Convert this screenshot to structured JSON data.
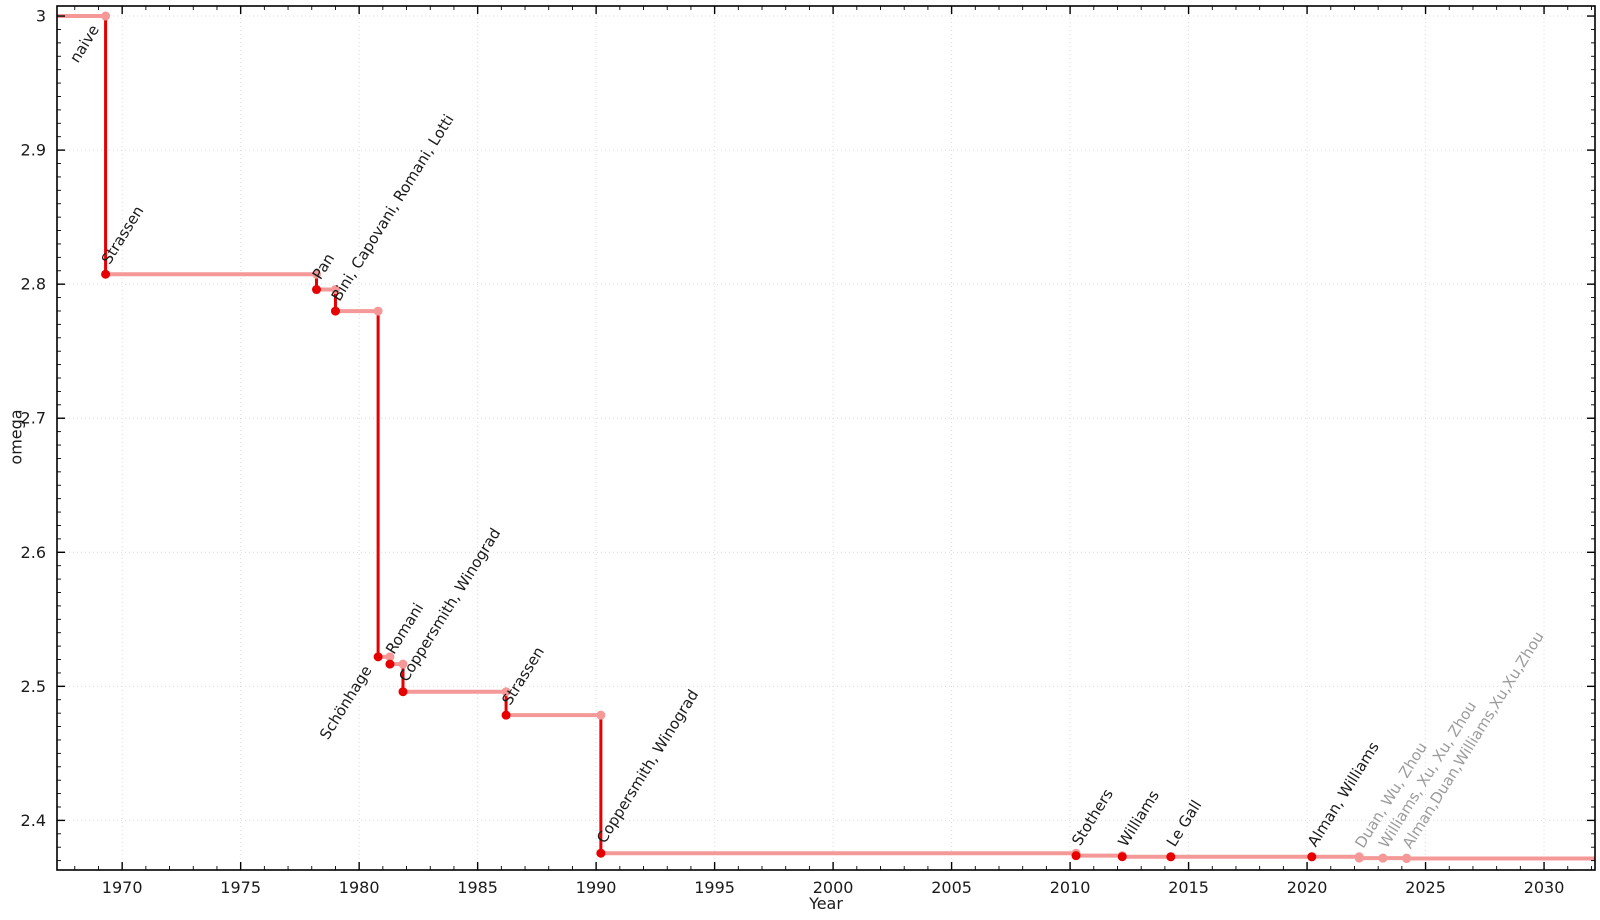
{
  "chart_data": {
    "type": "line",
    "subtype": "step-history",
    "title": "",
    "xlabel": "Year",
    "ylabel": "omega",
    "xlim": [
      1967.25,
      2032.15
    ],
    "ylim": [
      2.363,
      3.0075
    ],
    "x_major_ticks": [
      1970,
      1975,
      1980,
      1985,
      1990,
      1995,
      2000,
      2005,
      2010,
      2015,
      2020,
      2025,
      2030
    ],
    "x_minor_tick_step": 1,
    "y_major_ticks": [
      2.4,
      2.5,
      2.6,
      2.7,
      2.8,
      2.9,
      3.0
    ],
    "y_tick_labels": [
      "2.4",
      "2.5",
      "2.6",
      "2.7",
      "2.8",
      "2.9",
      "3"
    ],
    "y_minor_tick_step": 0.01,
    "grid": {
      "show": true,
      "style": "dotted",
      "on": "major-ticks"
    },
    "legend": {
      "show": false
    },
    "initial": {
      "label": "naive",
      "omega": 3.0,
      "label_side": "below-left"
    },
    "events": [
      {
        "label": "Strassen",
        "x": 1969.3,
        "omega": 2.8074
      },
      {
        "label": "Pan",
        "x": 1978.2,
        "omega": 2.796
      },
      {
        "label": "Bini, Capovani, Romani, Lotti",
        "x": 1979.0,
        "omega": 2.7799
      },
      {
        "label": "Schönhage",
        "x": 1980.8,
        "omega": 2.522,
        "label_side": "below-left"
      },
      {
        "label": "Romani",
        "x": 1981.3,
        "omega": 2.5166
      },
      {
        "label": "Coppersmith, Winograd",
        "x": 1981.85,
        "omega": 2.496
      },
      {
        "label": "Strassen",
        "x": 1986.2,
        "omega": 2.4785
      },
      {
        "label": "Coppersmith, Winograd",
        "x": 1990.2,
        "omega": 2.3755
      },
      {
        "label": "Stothers",
        "x": 2010.25,
        "omega": 2.3737
      },
      {
        "label": "Williams",
        "x": 2012.2,
        "omega": 2.3729
      },
      {
        "label": "Le Gall",
        "x": 2014.25,
        "omega": 2.3728639
      },
      {
        "label": "Alman, Williams",
        "x": 2020.2,
        "omega": 2.3728596
      },
      {
        "label": "Duan, Wu, Zhou",
        "x": 2022.2,
        "omega": 2.37188,
        "recent": true
      },
      {
        "label": "Williams, Xu, Xu, Zhou",
        "x": 2023.2,
        "omega": 2.371866,
        "recent": true
      },
      {
        "label": "Alman,Duan,Williams,Xu,Xu,Zhou",
        "x": 2024.2,
        "omega": 2.371552,
        "recent": true
      }
    ],
    "line_extends_to_x": 2032.15,
    "colors": {
      "drop_line": "#e60000",
      "plateau_line": "#f49898",
      "record_dot": "#e60000",
      "plateau_dot": "#f59898",
      "label_text": "#1a1a1a",
      "recent_label_text": "#9c9c9c",
      "grid": "#dcdcdc",
      "axis": "#000000",
      "tick_label": "#1a1a1a"
    }
  }
}
